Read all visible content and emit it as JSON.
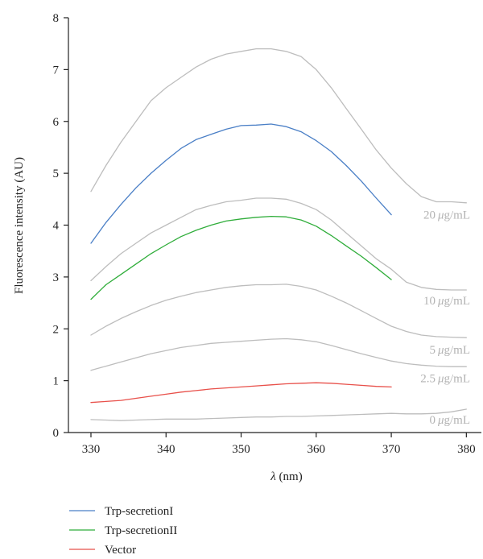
{
  "chart_data": {
    "type": "line",
    "xlabel_symbol": "λ",
    "xlabel_unit": " (nm)",
    "ylabel": "Fluorescence intensity (AU)",
    "xlim": [
      327,
      382
    ],
    "ylim": [
      0,
      8
    ],
    "xticks": [
      330,
      340,
      350,
      360,
      370,
      380
    ],
    "yticks": [
      0,
      1,
      2,
      3,
      4,
      5,
      6,
      7,
      8
    ],
    "grid": false,
    "legend_position": "bottom-left",
    "colors": {
      "standard": "#bdbdbd",
      "trp_secretion_1": "#4a7fc6",
      "trp_secretion_2": "#2fad3a",
      "vector": "#e8504a",
      "annotation": "#b3b3b3",
      "axis": "#222222"
    },
    "series": [
      {
        "label": "20 μg/mL",
        "color_key": "standard",
        "x": [
          330,
          332,
          334,
          336,
          338,
          340,
          342,
          344,
          346,
          348,
          350,
          352,
          354,
          356,
          358,
          360,
          362,
          364,
          366,
          368,
          370,
          372,
          374,
          376,
          378,
          380
        ],
        "y": [
          4.65,
          5.15,
          5.6,
          6.0,
          6.4,
          6.65,
          6.85,
          7.05,
          7.2,
          7.3,
          7.35,
          7.4,
          7.4,
          7.35,
          7.25,
          7.0,
          6.65,
          6.25,
          5.85,
          5.45,
          5.1,
          4.8,
          4.55,
          4.45,
          4.45,
          4.43
        ]
      },
      {
        "label": "10 μg/mL",
        "color_key": "standard",
        "x": [
          330,
          332,
          334,
          336,
          338,
          340,
          342,
          344,
          346,
          348,
          350,
          352,
          354,
          356,
          358,
          360,
          362,
          364,
          366,
          368,
          370,
          372,
          374,
          376,
          378,
          380
        ],
        "y": [
          2.93,
          3.2,
          3.45,
          3.65,
          3.85,
          4.0,
          4.15,
          4.3,
          4.38,
          4.45,
          4.48,
          4.52,
          4.52,
          4.5,
          4.42,
          4.3,
          4.1,
          3.85,
          3.6,
          3.35,
          3.15,
          2.9,
          2.8,
          2.76,
          2.75,
          2.75
        ]
      },
      {
        "label": "5 μg/mL",
        "color_key": "standard",
        "x": [
          330,
          332,
          334,
          336,
          338,
          340,
          342,
          344,
          346,
          348,
          350,
          352,
          354,
          356,
          358,
          360,
          362,
          364,
          366,
          368,
          370,
          372,
          374,
          376,
          378,
          380
        ],
        "y": [
          1.88,
          2.05,
          2.2,
          2.33,
          2.45,
          2.55,
          2.63,
          2.7,
          2.75,
          2.8,
          2.83,
          2.85,
          2.85,
          2.86,
          2.82,
          2.75,
          2.63,
          2.5,
          2.35,
          2.2,
          2.05,
          1.95,
          1.88,
          1.85,
          1.84,
          1.83
        ]
      },
      {
        "label": "2.5 μg/mL",
        "color_key": "standard",
        "x": [
          330,
          332,
          334,
          336,
          338,
          340,
          342,
          344,
          346,
          348,
          350,
          352,
          354,
          356,
          358,
          360,
          362,
          364,
          366,
          368,
          370,
          372,
          374,
          376,
          378,
          380
        ],
        "y": [
          1.2,
          1.28,
          1.36,
          1.44,
          1.52,
          1.58,
          1.64,
          1.68,
          1.72,
          1.74,
          1.76,
          1.78,
          1.8,
          1.81,
          1.79,
          1.75,
          1.68,
          1.6,
          1.52,
          1.45,
          1.38,
          1.33,
          1.3,
          1.28,
          1.27,
          1.27
        ]
      },
      {
        "label": "0 μg/mL",
        "color_key": "standard",
        "x": [
          330,
          332,
          334,
          336,
          338,
          340,
          342,
          344,
          346,
          348,
          350,
          352,
          354,
          356,
          358,
          360,
          362,
          364,
          366,
          368,
          370,
          372,
          374,
          376,
          378,
          380
        ],
        "y": [
          0.25,
          0.24,
          0.23,
          0.24,
          0.25,
          0.26,
          0.26,
          0.26,
          0.27,
          0.28,
          0.29,
          0.3,
          0.3,
          0.31,
          0.31,
          0.32,
          0.33,
          0.34,
          0.35,
          0.36,
          0.37,
          0.36,
          0.36,
          0.37,
          0.4,
          0.45
        ]
      },
      {
        "name": "Trp-secretionI",
        "color_key": "trp_secretion_1",
        "x": [
          330,
          332,
          334,
          336,
          338,
          340,
          342,
          344,
          346,
          348,
          350,
          352,
          354,
          356,
          358,
          360,
          362,
          364,
          366,
          368,
          370
        ],
        "y": [
          3.65,
          4.05,
          4.4,
          4.72,
          5.0,
          5.25,
          5.48,
          5.65,
          5.75,
          5.85,
          5.92,
          5.93,
          5.95,
          5.9,
          5.8,
          5.63,
          5.42,
          5.15,
          4.85,
          4.52,
          4.2
        ]
      },
      {
        "name": "Trp-secretionII",
        "color_key": "trp_secretion_2",
        "x": [
          330,
          332,
          334,
          336,
          338,
          340,
          342,
          344,
          346,
          348,
          350,
          352,
          354,
          356,
          358,
          360,
          362,
          364,
          366,
          368,
          370
        ],
        "y": [
          2.57,
          2.85,
          3.05,
          3.25,
          3.45,
          3.62,
          3.78,
          3.9,
          4.0,
          4.08,
          4.12,
          4.15,
          4.17,
          4.16,
          4.1,
          3.98,
          3.8,
          3.6,
          3.4,
          3.18,
          2.95
        ]
      },
      {
        "name": "Vector",
        "color_key": "vector",
        "x": [
          330,
          332,
          334,
          336,
          338,
          340,
          342,
          344,
          346,
          348,
          350,
          352,
          354,
          356,
          358,
          360,
          362,
          364,
          366,
          368,
          370
        ],
        "y": [
          0.58,
          0.6,
          0.62,
          0.66,
          0.7,
          0.74,
          0.78,
          0.81,
          0.84,
          0.86,
          0.88,
          0.9,
          0.92,
          0.94,
          0.95,
          0.96,
          0.95,
          0.93,
          0.91,
          0.89,
          0.88
        ]
      }
    ],
    "annotations": [
      {
        "value": "20",
        "unit": "μg/mL",
        "x": 380.5,
        "y": 4.2
      },
      {
        "value": "10",
        "unit": "μg/mL",
        "x": 380.5,
        "y": 2.55
      },
      {
        "value": "5",
        "unit": "μg/mL",
        "x": 380.5,
        "y": 1.6
      },
      {
        "value": "2.5",
        "unit": "μg/mL",
        "x": 380.5,
        "y": 1.05
      },
      {
        "value": "0",
        "unit": "μg/mL",
        "x": 380.5,
        "y": 0.25
      }
    ]
  }
}
